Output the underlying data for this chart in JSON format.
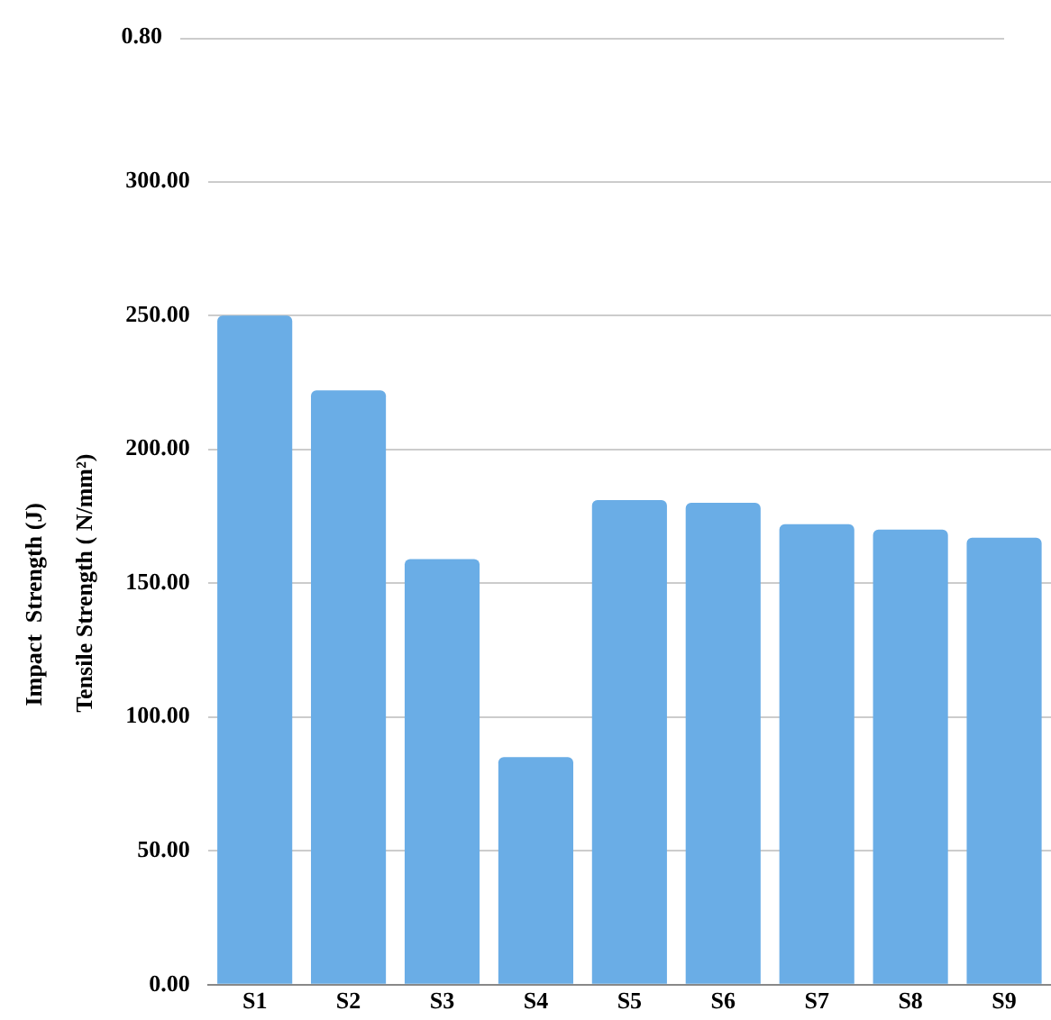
{
  "chart_data": [
    {
      "type": "other",
      "ylabel": "Impact  Strength (J)",
      "annotations": [
        "0.80"
      ]
    },
    {
      "type": "bar",
      "ylabel": "Tensile Strength ( N/mm²)",
      "categories": [
        "S1",
        "S2",
        "S3",
        "S4",
        "S5",
        "S6",
        "S7",
        "S8",
        "S9"
      ],
      "values": [
        250,
        222,
        159,
        85,
        181,
        180,
        172,
        170,
        167
      ],
      "color": "#6aade6",
      "ylim": [
        0,
        300
      ],
      "yticks": [
        {
          "value": 0,
          "label": "0.00"
        },
        {
          "value": 50,
          "label": "50.00"
        },
        {
          "value": 100,
          "label": "100.00"
        },
        {
          "value": 150,
          "label": "150.00"
        },
        {
          "value": 200,
          "label": "200.00"
        },
        {
          "value": 250,
          "label": "250.00"
        },
        {
          "value": 300,
          "label": "300.00"
        }
      ],
      "grid": "y",
      "legend": false
    }
  ]
}
